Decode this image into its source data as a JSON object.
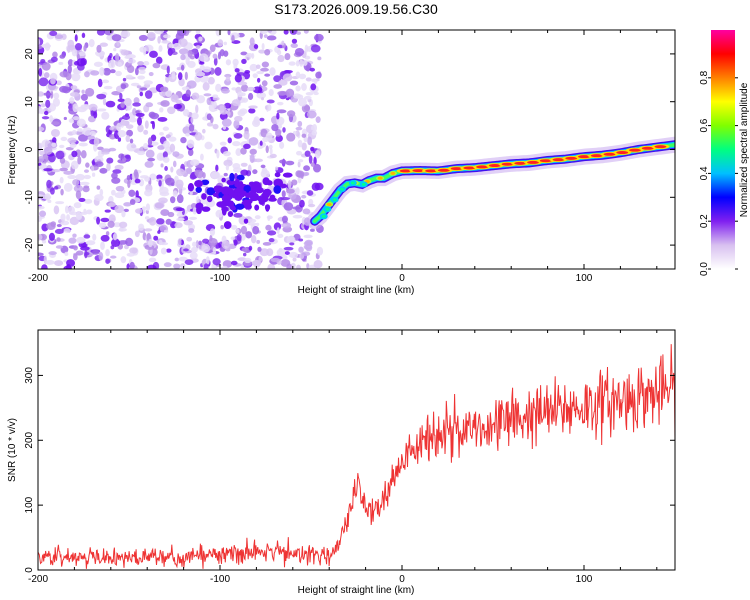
{
  "chart_data": [
    {
      "type": "heatmap",
      "title": "S173.2026.009.19.56.C30",
      "xlabel": "Height of straight line (km)",
      "ylabel": "Frequency (Hz)",
      "xlim": [
        -200,
        150
      ],
      "ylim": [
        -25,
        25
      ],
      "xticks": [
        -200,
        -100,
        0,
        100
      ],
      "xtick_labels": [
        "-200",
        "-100",
        "0",
        "100"
      ],
      "yticks": [
        -20,
        -10,
        0,
        10,
        20
      ],
      "ytick_labels": [
        "-20",
        "-10",
        "0",
        "10",
        "20"
      ],
      "colorbar": {
        "label": "Normalized spectral amplitude",
        "range": [
          0,
          1
        ],
        "ticks": [
          0,
          0.2,
          0.4,
          0.6,
          0.8
        ],
        "tick_labels": [
          "0.0",
          "0.2",
          "0.4",
          "0.6",
          "0.8"
        ],
        "colors": [
          "#ffffff",
          "#d8c0f0",
          "#8020f0",
          "#0000ff",
          "#00c0ff",
          "#00ff80",
          "#80ff00",
          "#ffff00",
          "#ff8000",
          "#ff0000",
          "#ff00a0"
        ]
      },
      "noise_region": {
        "x_range": [
          -200,
          -45
        ],
        "y_range": [
          -25,
          25
        ]
      },
      "blob_cluster": {
        "center": [
          -90,
          -9.5
        ],
        "spread": [
          18,
          3.5
        ]
      },
      "signal_track": {
        "x": [
          -48,
          -45,
          -42,
          -38,
          -34,
          -30,
          -26,
          -22,
          -18,
          -14,
          -10,
          -5,
          0,
          10,
          20,
          30,
          40,
          50,
          60,
          70,
          80,
          90,
          100,
          110,
          120,
          130,
          140,
          150
        ],
        "y": [
          -15,
          -14,
          -12.5,
          -10.5,
          -8.5,
          -7.2,
          -7.0,
          -7.3,
          -6.5,
          -6.0,
          -6.0,
          -5.0,
          -4.5,
          -4.4,
          -4.5,
          -4.0,
          -3.8,
          -3.4,
          -3.0,
          -2.8,
          -2.3,
          -2.0,
          -1.5,
          -1.2,
          -0.7,
          0,
          0.5,
          1.0
        ]
      }
    },
    {
      "type": "line",
      "xlabel": "Height of straight line (km)",
      "ylabel": "SNR (10 * v/v)",
      "xlim": [
        -200,
        150
      ],
      "ylim": [
        0,
        370
      ],
      "xticks": [
        -200,
        -100,
        0,
        100
      ],
      "xtick_labels": [
        "-200",
        "-100",
        "0",
        "100"
      ],
      "yticks": [
        0,
        100,
        200,
        300
      ],
      "ytick_labels": [
        "0",
        "100",
        "200",
        "300"
      ],
      "series": [
        {
          "name": "SNR",
          "color": "#ee3333",
          "x": [
            -200,
            -150,
            -100,
            -80,
            -60,
            -40,
            -35,
            -30,
            -25,
            -20,
            -15,
            -10,
            -5,
            0,
            10,
            20,
            30,
            40,
            50,
            60,
            70,
            80,
            90,
            100,
            110,
            120,
            130,
            140,
            150
          ],
          "y": [
            18,
            20,
            22,
            30,
            28,
            22,
            40,
            80,
            130,
            100,
            90,
            110,
            140,
            165,
            195,
            210,
            215,
            220,
            225,
            232,
            238,
            242,
            248,
            252,
            258,
            262,
            268,
            272,
            280
          ]
        }
      ]
    }
  ]
}
